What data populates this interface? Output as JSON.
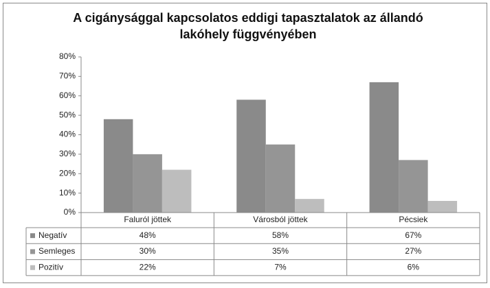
{
  "chart_data": {
    "type": "bar",
    "title": "A cigánysággal kapcsolatos eddigi tapasztalatok az állandó lakóhely függvényében",
    "categories": [
      "Faluról jöttek",
      "Városból jöttek",
      "Pécsiek"
    ],
    "series": [
      {
        "name": "Negatív",
        "color": "#8a8a8a",
        "values": [
          48,
          58,
          67
        ],
        "value_labels": [
          "48%",
          "58%",
          "67%"
        ]
      },
      {
        "name": "Semleges",
        "color": "#959595",
        "values": [
          30,
          35,
          27
        ],
        "value_labels": [
          "30%",
          "35%",
          "27%"
        ]
      },
      {
        "name": "Pozitív",
        "color": "#bdbdbd",
        "values": [
          22,
          7,
          6
        ],
        "value_labels": [
          "22%",
          "7%",
          "6%"
        ]
      }
    ],
    "ylim": [
      0,
      80
    ],
    "yticks": [
      {
        "value": 0,
        "label": "0%"
      },
      {
        "value": 10,
        "label": "10%"
      },
      {
        "value": 20,
        "label": "20%"
      },
      {
        "value": 30,
        "label": "30%"
      },
      {
        "value": 40,
        "label": "40%"
      },
      {
        "value": 50,
        "label": "50%"
      },
      {
        "value": 60,
        "label": "60%"
      },
      {
        "value": 70,
        "label": "70%"
      },
      {
        "value": 80,
        "label": "80%"
      }
    ],
    "grid": false
  }
}
